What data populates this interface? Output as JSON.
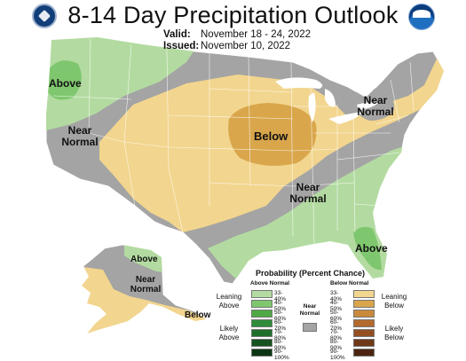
{
  "title": "8-14 Day Precipitation Outlook",
  "valid_label": "Valid:",
  "valid_dates": "November 18 - 24, 2022",
  "issued_label": "Issued:",
  "issued_date": "November 10, 2022",
  "logos": [
    "department-of-commerce-seal",
    "noaa-logo"
  ],
  "labels": {
    "above_nw": "Above",
    "near_normal_w": "Near Normal",
    "below_plains": "Below",
    "near_normal_ne": "Near Normal",
    "near_normal_se": "Near Normal",
    "above_fl": "Above",
    "above_ak": "Above",
    "near_normal_ak": "Near Normal",
    "below_ak": "Below"
  },
  "colors": {
    "near_normal_gray": "#a4a4a4",
    "above_33_40": "#b3dba1",
    "above_40_50": "#7fc76e",
    "below_33_40": "#f2d58e",
    "below_40_50": "#d9a64b"
  },
  "legend": {
    "title": "Probability (Percent Chance)",
    "above_header": "Above Normal",
    "below_header": "Below Normal",
    "near_normal_label": "Near Normal",
    "leaning_above": "Leaning Above",
    "likely_above": "Likely Above",
    "leaning_below": "Leaning Below",
    "likely_below": "Likely Below",
    "bins": [
      {
        "range": "33-40%",
        "above_color": "#b3dba1",
        "below_color": "#f2d58e"
      },
      {
        "range": "40-50%",
        "above_color": "#7fc76e",
        "below_color": "#d9a64b"
      },
      {
        "range": "50-60%",
        "above_color": "#4fa945",
        "below_color": "#c98a3b"
      },
      {
        "range": "60-70%",
        "above_color": "#2f8c3a",
        "below_color": "#b56a2d"
      },
      {
        "range": "70-80%",
        "above_color": "#1f6e2c",
        "below_color": "#934f22"
      },
      {
        "range": "80-90%",
        "above_color": "#15521f",
        "below_color": "#6f3818"
      },
      {
        "range": "90-100%",
        "above_color": "#0c3613",
        "below_color": "#4c2411"
      }
    ]
  }
}
